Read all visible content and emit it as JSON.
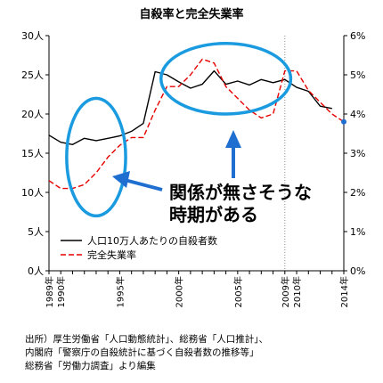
{
  "chart_data": {
    "type": "line",
    "title": "自殺率と完全失業率",
    "x": [
      1989,
      1990,
      1991,
      1992,
      1993,
      1994,
      1995,
      1996,
      1997,
      1998,
      1999,
      2000,
      2001,
      2002,
      2003,
      2004,
      2005,
      2006,
      2007,
      2008,
      2009,
      2010,
      2011,
      2012,
      2013,
      2014
    ],
    "x_tick_labels": [
      "1989年",
      "1990年",
      "1995年",
      "2000年",
      "2005年",
      "2009年",
      "2010年",
      "2014年"
    ],
    "x_tick_values": [
      1989,
      1990,
      1995,
      2000,
      2005,
      2009,
      2010,
      2014
    ],
    "y_left_ticks": [
      "0人",
      "5人",
      "10人",
      "15人",
      "20人",
      "25人",
      "30人"
    ],
    "y_left_lim": [
      0,
      30
    ],
    "y_right_ticks": [
      "0%",
      "1%",
      "2%",
      "3%",
      "4%",
      "5%",
      "6%"
    ],
    "y_right_lim": [
      0,
      6
    ],
    "series": [
      {
        "name": "人口10万人あたりの自殺者数",
        "axis": "left",
        "color": "#000000",
        "style": "solid",
        "values": [
          17.3,
          16.4,
          16.1,
          16.9,
          16.6,
          16.9,
          17.2,
          17.8,
          18.8,
          25.4,
          25.0,
          24.1,
          23.3,
          23.8,
          25.5,
          23.8,
          24.2,
          23.7,
          24.4,
          24.0,
          24.4,
          23.4,
          22.9,
          21.0,
          20.7,
          null
        ]
      },
      {
        "name": "完全失業率",
        "axis": "right",
        "color": "#e60000",
        "style": "dashed",
        "values": [
          2.3,
          2.1,
          2.1,
          2.2,
          2.5,
          2.9,
          3.2,
          3.4,
          3.4,
          4.1,
          4.7,
          4.7,
          5.0,
          5.4,
          5.3,
          4.7,
          4.4,
          4.1,
          3.9,
          4.0,
          5.1,
          5.1,
          4.6,
          4.3,
          4.0,
          3.8
        ]
      }
    ],
    "legend_position": "bottom-right",
    "annotation": [
      "関係が無さそうな",
      "時期がある"
    ],
    "reference_line_x": 2009,
    "highlight_ellipses": [
      {
        "x_range": [
          1990.5,
          1995.5
        ],
        "y_range": [
          7,
          22
        ]
      },
      {
        "x_range": [
          1998.5,
          2009.5
        ],
        "y_range": [
          20,
          29
        ]
      }
    ],
    "annotation_color": "#1f6fd1",
    "circle_color": "#1a9be0"
  },
  "source_lines": [
    "出所）厚生労働省「人口動態統計」、総務省「人口推計」、",
    "内閣府「警察庁の自殺統計に基づく自殺者数の推移等」",
    "総務省「労働力調査」より編集"
  ]
}
